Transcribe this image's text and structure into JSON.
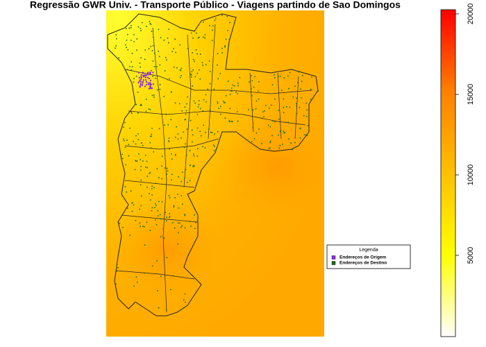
{
  "title": "Regressão GWR Univ. - Transporte Público - Viagens partindo de Sao Domingos",
  "legend": {
    "title": "Legenda",
    "items": [
      {
        "label": "Endereços de Origem",
        "color": "#8b2be2"
      },
      {
        "label": "Endereços de Destino",
        "color": "#1a6b1a"
      }
    ]
  },
  "colorbar": {
    "lim": [
      0,
      20000
    ],
    "ticks": [
      5000,
      10000,
      15000,
      20000
    ]
  }
}
